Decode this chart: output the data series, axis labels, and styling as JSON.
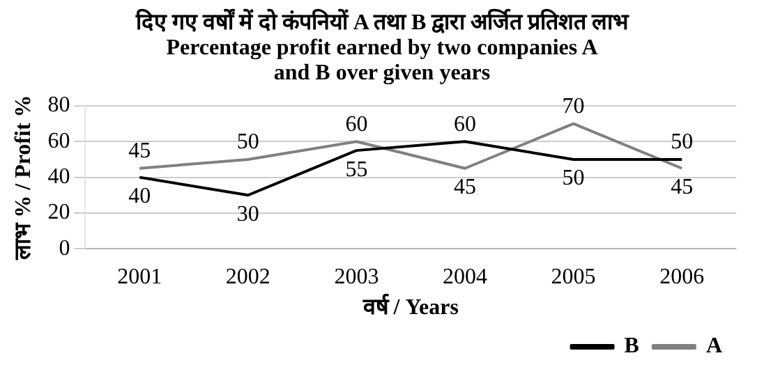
{
  "chart_data": {
    "type": "line",
    "title": "दिए गए वर्षों में दो कंपनियों A तथा B द्वारा अर्जित प्रतिशत लाभ",
    "subtitle": "Percentage profit earned by two companies A and B over given years",
    "xlabel": "वर्ष / Years",
    "ylabel": "लाभ % / Profit %",
    "categories": [
      "2001",
      "2002",
      "2003",
      "2004",
      "2005",
      "2006"
    ],
    "series": [
      {
        "name": "B",
        "color": "#000000",
        "values": [
          40,
          30,
          55,
          60,
          50,
          50
        ]
      },
      {
        "name": "A",
        "color": "#808080",
        "values": [
          45,
          50,
          60,
          45,
          70,
          45
        ]
      }
    ],
    "ylim": [
      0,
      80
    ],
    "yticks": [
      0,
      20,
      40,
      60,
      80
    ],
    "grid": "y",
    "legend": "bottom right",
    "data_labels": true,
    "marker": "none",
    "line_style": "solid"
  }
}
